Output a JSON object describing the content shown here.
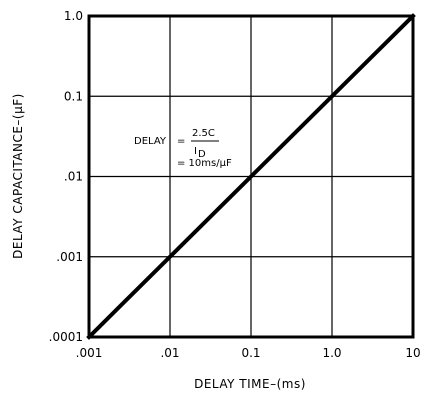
{
  "chart_data": {
    "type": "line",
    "title": "",
    "xlabel": "DELAY TIME–(ms)",
    "ylabel": "DELAY CAPACITANCE–(μF)",
    "xscale": "log",
    "yscale": "log",
    "xlim": [
      0.001,
      10
    ],
    "ylim": [
      0.0001,
      1.0
    ],
    "grid": true,
    "xticks": [
      0.001,
      0.01,
      0.1,
      1.0,
      10
    ],
    "xtick_labels": [
      ".001",
      ".01",
      "0.1",
      "1.0",
      "10"
    ],
    "yticks": [
      0.0001,
      0.001,
      0.01,
      0.1,
      1.0
    ],
    "ytick_labels": [
      ".0001",
      ".001",
      ".01",
      "0.1",
      "1.0"
    ],
    "series": [
      {
        "x": [
          0.001,
          10
        ],
        "y": [
          0.0001,
          1.0
        ]
      }
    ],
    "annotation": {
      "lhs": "DELAY",
      "equals": "=",
      "numerator": "2.5C",
      "denominator": "I",
      "denominator_sub": "D",
      "line2": "= 10ms/μF"
    }
  }
}
